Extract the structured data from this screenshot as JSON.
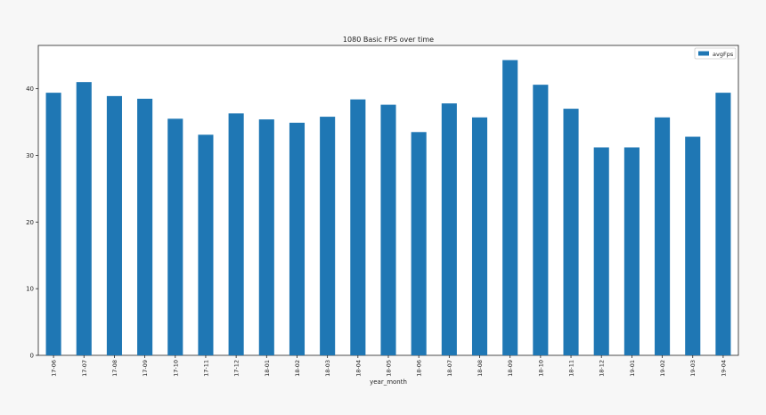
{
  "chart_data": {
    "type": "bar",
    "title": "1080 Basic FPS over time",
    "xlabel": "year_month",
    "ylabel": "",
    "categories": [
      "17-06",
      "17-07",
      "17-08",
      "17-09",
      "17-10",
      "17-11",
      "17-12",
      "18-01",
      "18-02",
      "18-03",
      "18-04",
      "18-05",
      "18-06",
      "18-07",
      "18-08",
      "18-09",
      "18-10",
      "18-11",
      "18-12",
      "19-01",
      "19-02",
      "19-03",
      "19-04"
    ],
    "series": [
      {
        "name": "avgFps",
        "color": "#1f77b4",
        "values": [
          39.4,
          41.0,
          38.9,
          38.5,
          35.5,
          33.1,
          36.3,
          35.4,
          34.9,
          35.8,
          38.4,
          37.6,
          33.5,
          37.8,
          35.7,
          44.3,
          40.6,
          37.0,
          31.2,
          31.2,
          35.7,
          32.8,
          39.4
        ]
      }
    ],
    "ylim": [
      0,
      46.5
    ],
    "yticks": [
      0,
      10,
      20,
      30,
      40
    ],
    "grid": false,
    "legend": "top-right"
  }
}
